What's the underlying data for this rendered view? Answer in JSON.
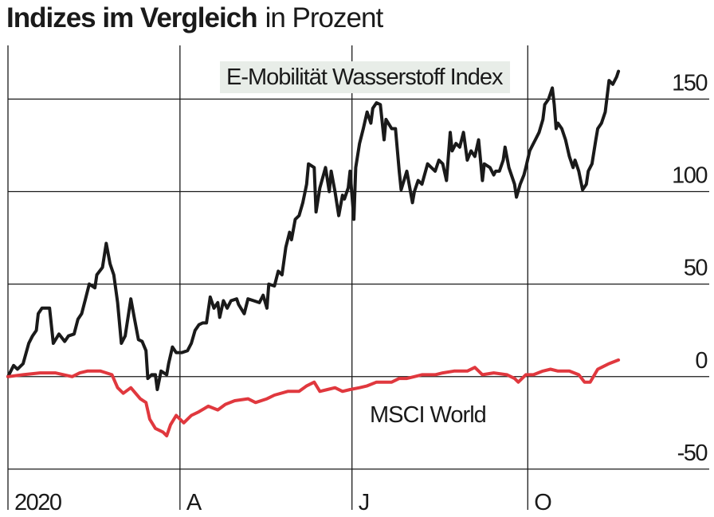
{
  "chart_data": {
    "type": "line",
    "title": "Indizes im Vergleich",
    "subtitle": "in Prozent",
    "xlim": [
      0,
      371
    ],
    "xticks": [
      {
        "value": 0,
        "label": "2020"
      },
      {
        "value": 91,
        "label": "A"
      },
      {
        "value": 182,
        "label": "J"
      },
      {
        "value": 275,
        "label": "O"
      }
    ],
    "ylim": [
      -72,
      179
    ],
    "yticks": [
      -50,
      0,
      50,
      100,
      150
    ],
    "grid": true,
    "series": [
      {
        "name": "E-Mobilität Wasserstoff Index",
        "color": "#1a1a1a",
        "x": [
          0,
          3,
          5,
          8,
          11,
          13,
          15,
          16,
          18,
          20,
          22,
          24,
          27,
          30,
          32,
          35,
          37,
          39,
          41,
          43,
          46,
          47,
          50,
          52,
          54,
          56,
          58,
          60,
          62,
          65,
          67,
          69,
          71,
          73,
          74,
          76,
          78,
          79,
          81,
          84,
          85,
          87,
          89,
          92,
          95,
          97,
          99,
          101,
          103,
          105,
          107,
          109,
          111,
          112,
          114,
          116,
          118,
          121,
          122,
          125,
          127,
          130,
          133,
          135,
          137,
          138,
          141,
          143,
          145,
          147,
          149,
          150,
          152,
          154,
          156,
          158,
          159,
          162,
          163,
          165,
          168,
          170,
          171,
          173,
          175,
          177,
          178,
          180,
          181,
          183,
          184,
          186,
          188,
          190,
          192,
          193,
          195,
          197,
          199,
          200,
          203,
          205,
          207,
          208,
          211,
          214,
          215,
          217,
          219,
          222,
          224,
          226,
          228,
          230,
          232,
          234,
          235,
          237,
          239,
          241,
          243,
          245,
          247,
          249,
          251,
          252,
          255,
          257,
          258,
          260,
          262,
          263,
          265,
          268,
          269,
          271,
          273,
          274,
          276,
          278,
          279,
          281,
          283,
          284,
          286,
          288,
          289,
          290,
          291,
          293,
          295,
          297,
          299,
          300,
          302,
          304,
          306,
          307,
          309,
          311,
          312,
          314,
          316,
          318,
          320,
          322,
          323
        ],
        "values": [
          0,
          6,
          4,
          7,
          18,
          22,
          25,
          34,
          37,
          37,
          37,
          18,
          23,
          19,
          22,
          23,
          31,
          34,
          42,
          50,
          48,
          55,
          59,
          72,
          61,
          55,
          40,
          18,
          22,
          42,
          31,
          20,
          19,
          14,
          -1,
          1,
          1,
          -7,
          3,
          1,
          7,
          16,
          13,
          13,
          14,
          18,
          25,
          28,
          29,
          29,
          43,
          37,
          40,
          32,
          41,
          37,
          41,
          42,
          39,
          34,
          42,
          41,
          40,
          44,
          37,
          50,
          49,
          57,
          55,
          70,
          78,
          74,
          85,
          87,
          94,
          104,
          115,
          113,
          89,
          102,
          113,
          100,
          111,
          100,
          87,
          98,
          96,
          102,
          111,
          85,
          113,
          126,
          134,
          143,
          137,
          145,
          148,
          147,
          128,
          139,
          134,
          134,
          111,
          101,
          111,
          94,
          100,
          106,
          104,
          115,
          113,
          111,
          117,
          115,
          106,
          132,
          122,
          126,
          124,
          132,
          117,
          122,
          119,
          128,
          106,
          115,
          113,
          109,
          111,
          111,
          117,
          124,
          113,
          104,
          97,
          104,
          109,
          113,
          122,
          126,
          128,
          132,
          139,
          147,
          150,
          156,
          147,
          134,
          137,
          134,
          128,
          119,
          113,
          117,
          111,
          101,
          104,
          111,
          115,
          128,
          134,
          137,
          143,
          160,
          158,
          162,
          165
        ]
      },
      {
        "name": "MSCI World",
        "color": "#e0383e",
        "x": [
          0,
          8,
          17,
          25,
          34,
          38,
          42,
          49,
          55,
          58,
          61,
          65,
          70,
          73,
          75,
          78,
          82,
          84,
          86,
          89,
          93,
          97,
          101,
          106,
          111,
          115,
          120,
          127,
          131,
          137,
          141,
          148,
          154,
          158,
          162,
          165,
          169,
          173,
          177,
          181,
          186,
          190,
          195,
          203,
          207,
          211,
          215,
          219,
          226,
          230,
          236,
          243,
          247,
          251,
          257,
          264,
          268,
          270,
          274,
          278,
          283,
          287,
          291,
          297,
          302,
          305,
          308,
          312,
          314,
          318,
          323
        ],
        "values": [
          0,
          1,
          2,
          2,
          0,
          2,
          3,
          3,
          1,
          -6,
          -9,
          -6,
          -12,
          -14,
          -23,
          -28,
          -30,
          -32,
          -26,
          -21,
          -25,
          -21,
          -19,
          -16,
          -18,
          -15,
          -13,
          -12,
          -14,
          -12,
          -10,
          -8,
          -8,
          -5,
          -3,
          -8,
          -7,
          -6,
          -8,
          -7,
          -6,
          -5,
          -3,
          -3,
          -1,
          -1,
          0,
          1,
          1,
          2,
          3,
          3,
          5,
          1,
          2,
          1,
          -1,
          -3,
          1,
          1,
          3,
          4,
          3,
          3,
          1,
          -3,
          -3,
          4,
          5,
          7,
          9
        ]
      }
    ]
  }
}
